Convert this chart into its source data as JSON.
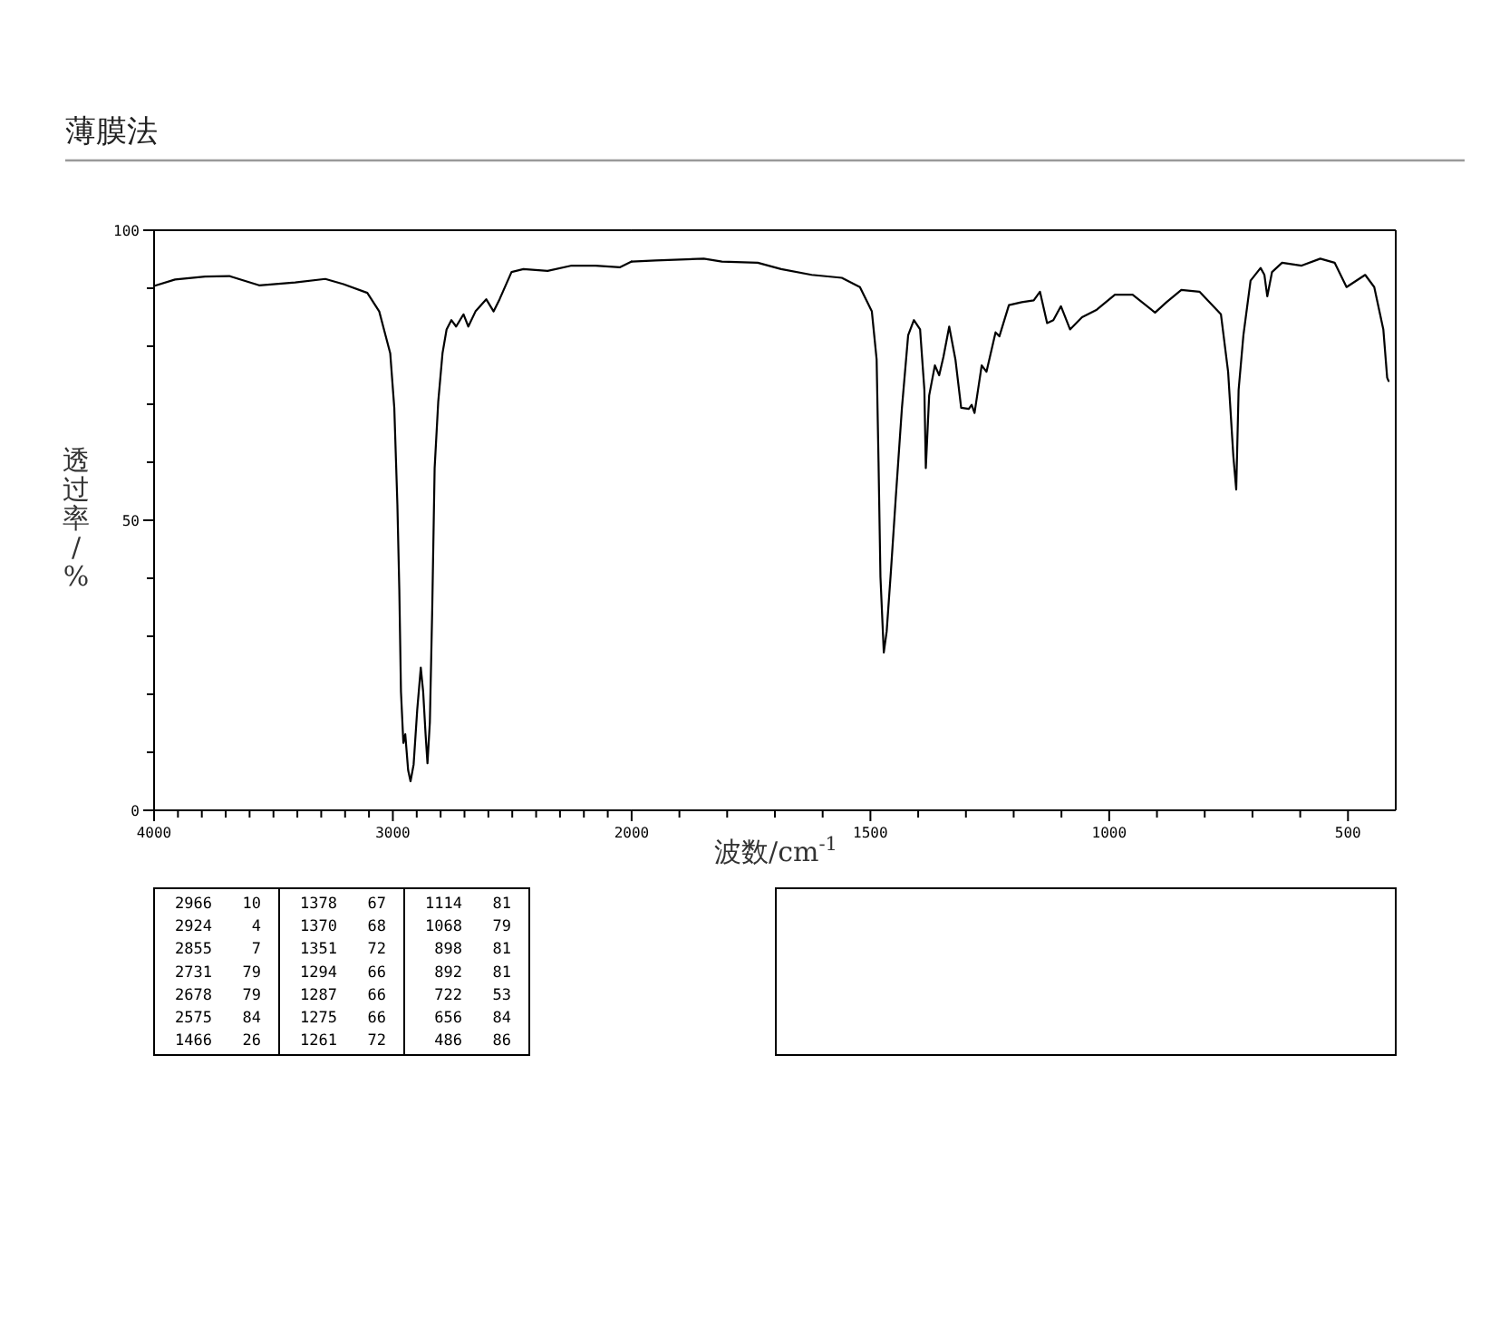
{
  "chart_data": [
    {
      "type": "line",
      "title": "薄膜法",
      "ylabel": "透过率/%",
      "xlim": [
        4000,
        2000
      ],
      "ylim": [
        0,
        100
      ],
      "xticks": [
        4000,
        {
          "value": 3900,
          "label": null
        },
        {
          "value": 3800,
          "label": null
        },
        {
          "value": 3700,
          "label": null
        },
        {
          "value": 3600,
          "label": null
        },
        {
          "value": 3500,
          "label": null
        },
        {
          "value": 3400,
          "label": null
        },
        {
          "value": 3300,
          "label": null
        },
        {
          "value": 3200,
          "label": null
        },
        {
          "value": 3100,
          "label": null
        },
        3000,
        {
          "value": 2900,
          "label": null
        },
        {
          "value": 2800,
          "label": null
        },
        {
          "value": 2700,
          "label": null
        },
        {
          "value": 2600,
          "label": null
        },
        {
          "value": 2500,
          "label": null
        },
        {
          "value": 2400,
          "label": null
        },
        {
          "value": 2300,
          "label": null
        },
        {
          "value": 2200,
          "label": null
        },
        {
          "value": 2100,
          "label": null
        },
        2000
      ],
      "yticks": [
        0,
        {
          "value": 10,
          "label": null
        },
        {
          "value": 20,
          "label": null
        },
        {
          "value": 30,
          "label": null
        },
        {
          "value": 40,
          "label": null
        },
        50,
        {
          "value": 60,
          "label": null
        },
        {
          "value": 70,
          "label": null
        },
        {
          "value": 80,
          "label": null
        },
        {
          "value": 90,
          "label": null
        },
        100
      ],
      "marker": "none",
      "line_style": "solid",
      "series": [
        {
          "color": "#000000",
          "x": [
            4000,
            3912,
            3786,
            3685,
            3560,
            3409,
            3283,
            3207,
            3107,
            3057,
            3031,
            3011,
            2994,
            2981,
            2973,
            2966,
            2956,
            2948,
            2936,
            2926,
            2913,
            2898,
            2883,
            2873,
            2863,
            2855,
            2845,
            2835,
            2825,
            2810,
            2792,
            2775,
            2755,
            2735,
            2704,
            2684,
            2654,
            2609,
            2578,
            2553,
            2503,
            2453,
            2352,
            2251,
            2151,
            2050,
            2000
          ],
          "values": [
            90.4,
            91.5,
            92,
            92.1,
            90.5,
            91,
            91.6,
            90.7,
            89.2,
            86,
            81.9,
            78.8,
            69.4,
            52.7,
            38.1,
            20.4,
            11.6,
            13.1,
            6.9,
            5,
            7.9,
            17.3,
            24.6,
            20.4,
            13.1,
            8.1,
            15.2,
            35,
            59,
            70.4,
            78.8,
            82.9,
            84.5,
            83.4,
            85.5,
            83.4,
            86,
            88.1,
            86,
            88.1,
            92.8,
            93.3,
            93,
            93.9,
            93.9,
            93.6,
            94.6
          ]
        }
      ],
      "annotations": [
        "2966",
        "10",
        "2924",
        "4",
        "2855",
        "7",
        "2731",
        "79",
        "2678",
        "79",
        "2575",
        "84",
        "1466",
        "26",
        "1378",
        "67",
        "1370",
        "68",
        "1351",
        "72",
        "1294",
        "66",
        "1287",
        "66",
        "1275",
        "66",
        "1261",
        "72",
        "1114",
        "81",
        "1068",
        "79",
        "898",
        "81",
        "892",
        "81",
        "722",
        "53",
        "656",
        "84",
        "486",
        "86"
      ]
    },
    {
      "type": "line",
      "xlabel": "波数/cm$^{-1}$",
      "xlim": [
        2000,
        400
      ],
      "ylim": [
        0,
        100
      ],
      "tick_labels": "x",
      "xticks": [
        {
          "value": 1900,
          "label": null
        },
        {
          "value": 1800,
          "label": null
        },
        {
          "value": 1700,
          "label": null
        },
        {
          "value": 1600,
          "label": null
        },
        1500,
        {
          "value": 1400,
          "label": null
        },
        {
          "value": 1300,
          "label": null
        },
        {
          "value": 1200,
          "label": null
        },
        {
          "value": 1100,
          "label": null
        },
        1000,
        {
          "value": 900,
          "label": null
        },
        {
          "value": 800,
          "label": null
        },
        {
          "value": 700,
          "label": null
        },
        {
          "value": 600,
          "label": null
        },
        500
      ],
      "marker": "none",
      "line_style": "solid",
      "series": [
        {
          "color": "#000000",
          "x": [
            2000,
            1950,
            1849,
            1811,
            1736,
            1687,
            1623,
            1560,
            1522,
            1497,
            1487,
            1483,
            1479,
            1472,
            1466,
            1457,
            1447,
            1434,
            1421,
            1409,
            1396,
            1387,
            1384,
            1377,
            1365,
            1356,
            1347,
            1335,
            1322,
            1310,
            1294,
            1288,
            1282,
            1267,
            1257,
            1238,
            1230,
            1210,
            1183,
            1158,
            1145,
            1130,
            1117,
            1101,
            1082,
            1057,
            1026,
            988,
            951,
            904,
            880,
            849,
            811,
            766,
            751,
            740,
            734,
            729,
            719,
            704,
            683,
            675,
            669,
            659,
            638,
            597,
            558,
            528,
            503,
            464,
            445,
            426,
            418,
            415
          ],
          "values": [
            94.6,
            94.8,
            95.1,
            94.6,
            94.4,
            93.3,
            92.3,
            91.8,
            90.2,
            86,
            77.7,
            60,
            40.2,
            27.2,
            30.8,
            41.3,
            53.8,
            69.4,
            81.9,
            84.5,
            82.9,
            72.5,
            59,
            71.5,
            76.7,
            75,
            78.2,
            83.4,
            77.7,
            69.4,
            69.2,
            69.9,
            68.5,
            76.7,
            75.6,
            82.4,
            81.7,
            87.1,
            87.6,
            87.9,
            89.4,
            84,
            84.5,
            86.9,
            82.9,
            85,
            86.3,
            88.9,
            88.9,
            85.8,
            87.6,
            89.7,
            89.4,
            85.5,
            75.6,
            61,
            55.3,
            72.5,
            81.9,
            91.3,
            93.5,
            92.3,
            88.6,
            92.8,
            94.4,
            93.9,
            95.1,
            94.4,
            90.2,
            92.3,
            90.2,
            82.9,
            74.6,
            74
          ]
        }
      ]
    }
  ]
}
